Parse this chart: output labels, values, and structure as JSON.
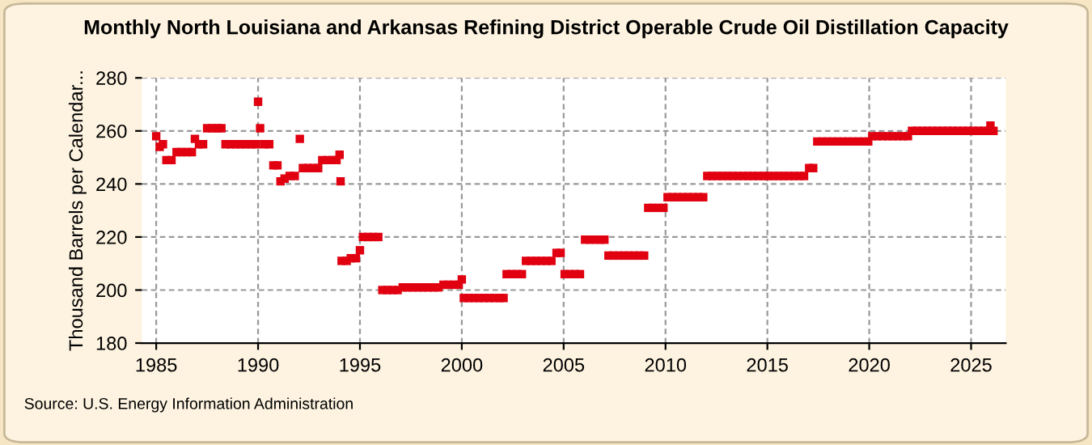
{
  "chart_data": {
    "type": "scatter",
    "title": "Monthly North Louisiana and Arkansas Refining District Operable Crude Oil Distillation Capacity",
    "ylabel": "Thousand Barrels per Calendar...",
    "annotations": [
      "Source: U.S. Energy Information Administration"
    ],
    "x": [
      1985.0,
      1985.17,
      1985.33,
      1985.5,
      1985.75,
      1986.0,
      1986.25,
      1986.5,
      1986.75,
      1986.9,
      1987.1,
      1987.3,
      1987.5,
      1987.75,
      1988.0,
      1988.2,
      1988.4,
      1988.65,
      1988.9,
      1989.15,
      1989.4,
      1989.65,
      1989.9,
      1990.0,
      1990.1,
      1990.3,
      1990.55,
      1990.75,
      1990.95,
      1991.1,
      1991.3,
      1991.55,
      1991.8,
      1992.05,
      1992.2,
      1992.45,
      1992.7,
      1992.95,
      1993.15,
      1993.4,
      1993.65,
      1993.85,
      1994.0,
      1994.05,
      1994.1,
      1994.35,
      1994.55,
      1994.8,
      1995.0,
      1995.15,
      1995.4,
      1995.65,
      1995.9,
      1996.1,
      1996.35,
      1996.6,
      1996.85,
      1997.1,
      1997.35,
      1997.6,
      1997.85,
      1998.1,
      1998.35,
      1998.6,
      1998.85,
      1999.1,
      1999.35,
      1999.6,
      1999.85,
      2000.0,
      2000.1,
      2000.35,
      2000.6,
      2000.85,
      2001.1,
      2001.35,
      2001.6,
      2001.85,
      2002.05,
      2002.2,
      2002.45,
      2002.7,
      2002.95,
      2003.15,
      2003.4,
      2003.65,
      2003.9,
      2004.15,
      2004.4,
      2004.65,
      2004.85,
      2005.05,
      2005.3,
      2005.55,
      2005.8,
      2006.05,
      2006.3,
      2006.55,
      2006.8,
      2007.0,
      2007.2,
      2007.45,
      2007.7,
      2007.95,
      2008.2,
      2008.45,
      2008.7,
      2008.95,
      2009.15,
      2009.4,
      2009.65,
      2009.9,
      2010.1,
      2010.35,
      2010.6,
      2010.85,
      2011.1,
      2011.35,
      2011.6,
      2011.85,
      2012.05,
      2012.3,
      2012.55,
      2012.8,
      2013.05,
      2013.3,
      2013.55,
      2013.8,
      2014.05,
      2014.3,
      2014.55,
      2014.8,
      2015.05,
      2015.3,
      2015.55,
      2015.8,
      2016.05,
      2016.3,
      2016.55,
      2016.8,
      2017.05,
      2017.25,
      2017.45,
      2017.7,
      2017.95,
      2018.2,
      2018.45,
      2018.7,
      2018.95,
      2019.2,
      2019.45,
      2019.7,
      2019.95,
      2020.15,
      2020.4,
      2020.65,
      2020.9,
      2021.15,
      2021.4,
      2021.65,
      2021.9,
      2022.1,
      2022.35,
      2022.6,
      2022.85,
      2023.1,
      2023.35,
      2023.6,
      2023.85,
      2024.1,
      2024.35,
      2024.6,
      2024.85,
      2025.1,
      2025.35,
      2025.6,
      2025.85,
      2025.95,
      2026.1
    ],
    "series": [
      {
        "color": "#e00010",
        "values": [
          258,
          254,
          255,
          249,
          249,
          252,
          252,
          252,
          252,
          257,
          255,
          255,
          261,
          261,
          261,
          261,
          255,
          255,
          255,
          255,
          255,
          255,
          255,
          271,
          261,
          255,
          255,
          247,
          247,
          241,
          242,
          243,
          243,
          257,
          246,
          246,
          246,
          246,
          249,
          249,
          249,
          249,
          251,
          241,
          211,
          211,
          212,
          212,
          215,
          220,
          220,
          220,
          220,
          200,
          200,
          200,
          200,
          201,
          201,
          201,
          201,
          201,
          201,
          201,
          201,
          202,
          202,
          202,
          202,
          204,
          197,
          197,
          197,
          197,
          197,
          197,
          197,
          197,
          197,
          206,
          206,
          206,
          206,
          211,
          211,
          211,
          211,
          211,
          211,
          214,
          214,
          206,
          206,
          206,
          206,
          219,
          219,
          219,
          219,
          219,
          213,
          213,
          213,
          213,
          213,
          213,
          213,
          213,
          231,
          231,
          231,
          231,
          235,
          235,
          235,
          235,
          235,
          235,
          235,
          235,
          243,
          243,
          243,
          243,
          243,
          243,
          243,
          243,
          243,
          243,
          243,
          243,
          243,
          243,
          243,
          243,
          243,
          243,
          243,
          243,
          246,
          246,
          256,
          256,
          256,
          256,
          256,
          256,
          256,
          256,
          256,
          256,
          256,
          258,
          258,
          258,
          258,
          258,
          258,
          258,
          258,
          260,
          260,
          260,
          260,
          260,
          260,
          260,
          260,
          260,
          260,
          260,
          260,
          260,
          260,
          260,
          260,
          262,
          260
        ]
      }
    ],
    "xlim": [
      1984.3,
      2026.7
    ],
    "xticks": [
      1985,
      1990,
      1995,
      2000,
      2005,
      2010,
      2015,
      2020,
      2025
    ],
    "ylim": [
      180,
      280
    ],
    "yticks": [
      180,
      200,
      220,
      240,
      260,
      280
    ],
    "grid": true,
    "marker": "square",
    "legend": false
  }
}
